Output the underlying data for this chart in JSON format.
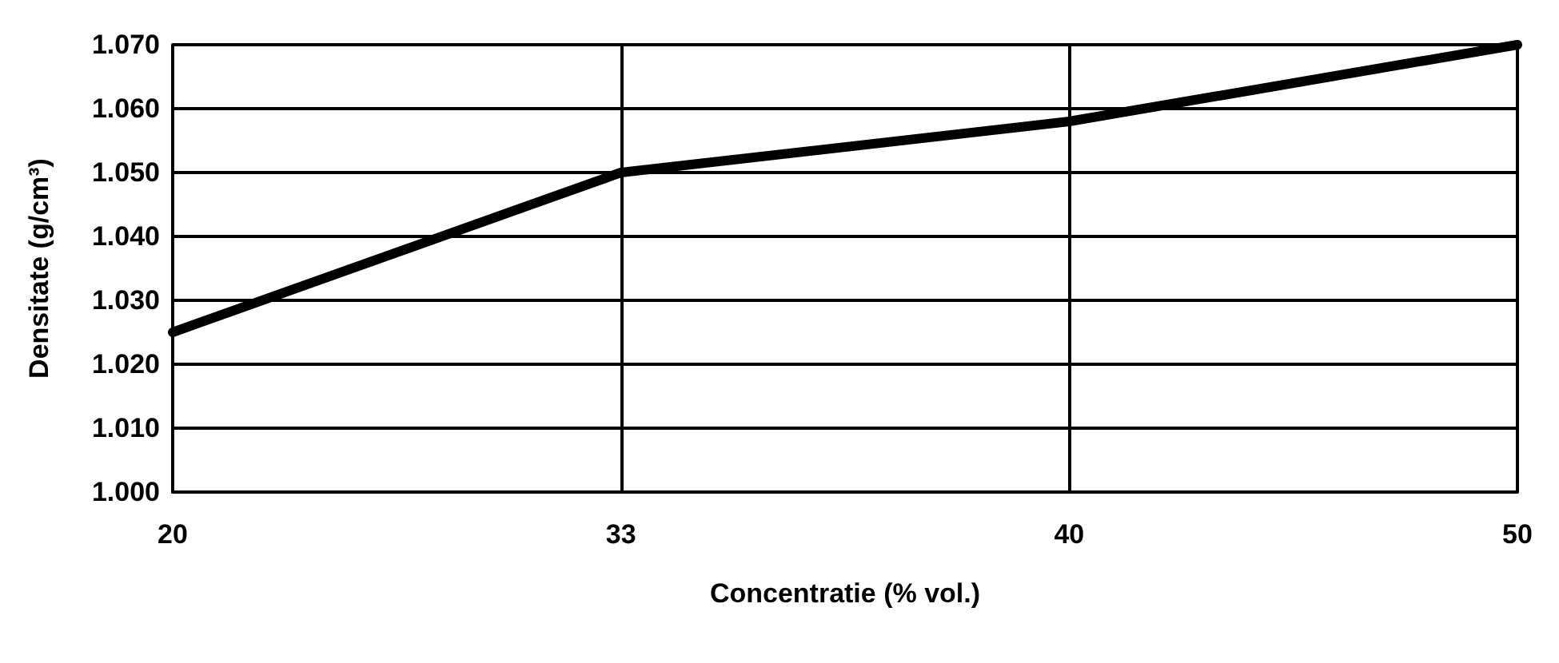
{
  "chart_data": {
    "type": "line",
    "xlabel": "Concentratie (% vol.)",
    "ylabel": "Densitate (g/cm³)",
    "categories": [
      "20",
      "33",
      "40",
      "50"
    ],
    "series": [
      {
        "color": "#000000",
        "values": [
          1.025,
          1.05,
          1.058,
          1.07
        ]
      }
    ],
    "ylim": [
      1.0,
      1.07
    ],
    "yticks": [
      {
        "value": 1.0,
        "label": "1.000"
      },
      {
        "value": 1.01,
        "label": "1.010"
      },
      {
        "value": 1.02,
        "label": "1.020"
      },
      {
        "value": 1.03,
        "label": "1.030"
      },
      {
        "value": 1.04,
        "label": "1.040"
      },
      {
        "value": 1.05,
        "label": "1.050"
      },
      {
        "value": 1.06,
        "label": "1.060"
      },
      {
        "value": 1.07,
        "label": "1.070"
      }
    ],
    "grid": true,
    "marker": "none",
    "line_style": "solid"
  }
}
